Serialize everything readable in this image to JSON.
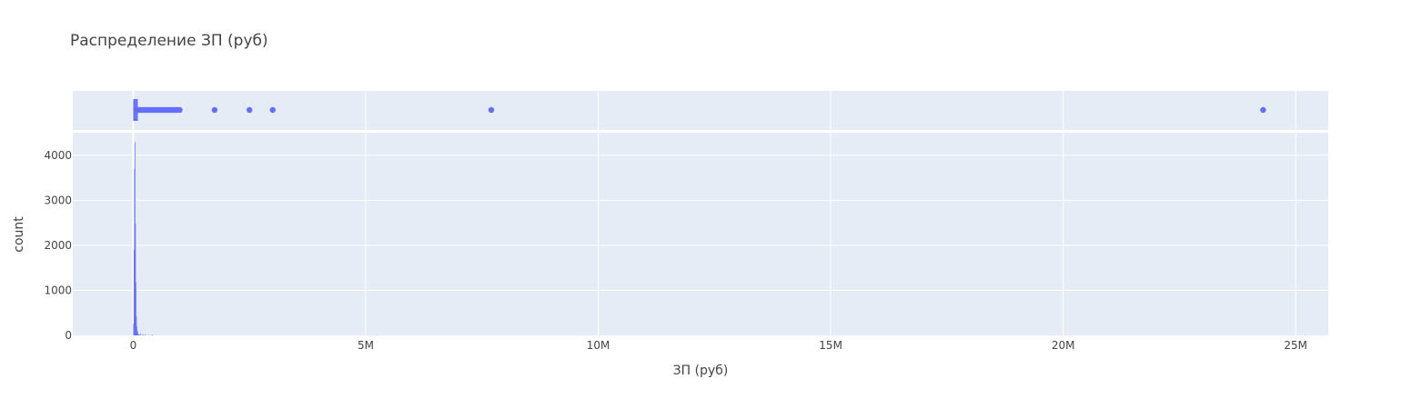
{
  "chart_data": {
    "title": "Распределение ЗП (руб)",
    "xlabel": "ЗП (руб)",
    "ylabel": "count",
    "color": "#636efa",
    "plot_bg": "#e5ecf6",
    "grid_color": "#ffffff",
    "grid": true,
    "legend": "none",
    "x_range": [
      -1300000,
      25700000
    ],
    "x_ticks": [
      0,
      5000000,
      10000000,
      15000000,
      20000000,
      25000000
    ],
    "x_tick_labels": [
      "0",
      "5M",
      "10M",
      "15M",
      "20M",
      "25M"
    ],
    "histogram": {
      "type": "bar",
      "ylim": [
        0,
        4500
      ],
      "y_ticks": [
        0,
        1000,
        2000,
        3000,
        4000
      ],
      "y_tick_labels": [
        "0",
        "1000",
        "2000",
        "3000",
        "4000"
      ],
      "bin_width": 10000,
      "bins_x": [
        0,
        10000,
        20000,
        30000,
        40000,
        50000,
        60000,
        70000,
        80000,
        90000,
        100000,
        110000,
        120000,
        130000,
        150000,
        200000,
        250000,
        300000,
        350000,
        400000,
        450000
      ],
      "counts": [
        260,
        1900,
        3700,
        4290,
        2480,
        1180,
        420,
        200,
        110,
        60,
        30,
        20,
        15,
        10,
        35,
        20,
        25,
        8,
        6,
        20,
        4
      ]
    },
    "box": {
      "type": "box",
      "orientation": "horizontal",
      "q1": 20000,
      "median": 35000,
      "q3": 50000,
      "lower_fence": 0,
      "upper_fence": 95000,
      "outliers": [
        100000,
        120000,
        150000,
        200000,
        250000,
        300000,
        350000,
        400000,
        450000,
        500000,
        550000,
        600000,
        650000,
        700000,
        750000,
        800000,
        850000,
        900000,
        950000,
        1000000,
        1750000,
        2500000,
        3000000,
        7700000,
        24300000
      ]
    }
  }
}
